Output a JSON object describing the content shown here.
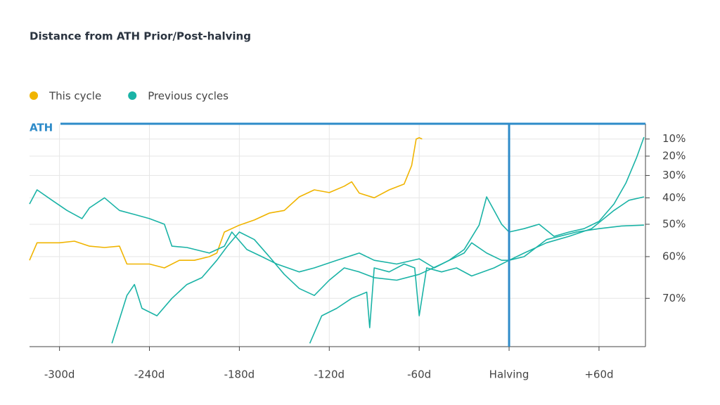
{
  "chart_data": {
    "type": "line",
    "title": "Distance from ATH Prior/Post-halving",
    "yscale": "log-price",
    "grid": true,
    "legend": "top-left",
    "xlim": [
      -320,
      91
    ],
    "xticks": [
      {
        "value": -300,
        "label": "-300d"
      },
      {
        "value": -240,
        "label": "-240d"
      },
      {
        "value": -180,
        "label": "-180d"
      },
      {
        "value": -120,
        "label": "-120d"
      },
      {
        "value": -60,
        "label": "-60d"
      },
      {
        "value": 0,
        "label": "Halving"
      },
      {
        "value": 60,
        "label": "+60d"
      }
    ],
    "ylim": [
      0,
      78.5
    ],
    "yticks": [
      {
        "value": 10,
        "label": "10%"
      },
      {
        "value": 20,
        "label": "20%"
      },
      {
        "value": 30,
        "label": "30%"
      },
      {
        "value": 40,
        "label": "40%"
      },
      {
        "value": 50,
        "label": "50%"
      },
      {
        "value": 60,
        "label": "60%"
      },
      {
        "value": 70,
        "label": "70%"
      }
    ],
    "annotations": [
      {
        "label": "ATH",
        "y": 0,
        "color": "#2e8bc9"
      }
    ],
    "vlines": [
      {
        "x": 0,
        "color": "#2e8bc9"
      }
    ],
    "series": [
      {
        "name": "This cycle",
        "color": "#f0b400",
        "lines": [
          {
            "x": [
              -320,
              -315,
              -300,
              -290,
              -280,
              -270,
              -260,
              -255,
              -240,
              -230,
              -220,
              -210,
              -200,
              -195,
              -190,
              -180,
              -170,
              -160,
              -150,
              -140,
              -130,
              -120,
              -110,
              -105,
              -100,
              -90,
              -80,
              -70,
              -65,
              -62,
              -60,
              -58
            ],
            "values": [
              61,
              56,
              56,
              55.5,
              57,
              57.4,
              57,
              62,
              62,
              63,
              61,
              61,
              60,
              59,
              52.6,
              50.3,
              48.5,
              46,
              45,
              39.6,
              36.6,
              37.8,
              35,
              33,
              38,
              40,
              36.6,
              34,
              25,
              10,
              9.2,
              10
            ]
          }
        ]
      },
      {
        "name": "Previous cycles",
        "color": "#1ab3a6",
        "lines": [
          {
            "x": [
              -320,
              -315,
              -305,
              -295,
              -285,
              -280,
              -270,
              -260,
              -250,
              -240,
              -230,
              -225,
              -215,
              -200,
              -190,
              -185,
              -175,
              -165,
              -155,
              -140,
              -130,
              -115,
              -100,
              -90,
              -75,
              -60,
              -50,
              -40,
              -30,
              -20,
              -15,
              -10,
              -5,
              0,
              10,
              20,
              30,
              40,
              50,
              60,
              70,
              78,
              85,
              90
            ],
            "values": [
              42.5,
              36.6,
              41,
              45,
              48,
              44,
              40,
              45,
              46.5,
              48,
              50,
              57,
              57.4,
              59,
              57,
              52.6,
              58,
              60,
              62,
              64,
              63,
              61,
              59,
              61,
              62,
              60.6,
              63,
              61,
              58,
              50.3,
              39.6,
              45,
              50,
              52.6,
              51.5,
              50,
              54,
              52.6,
              51.5,
              49,
              42.5,
              33.5,
              21,
              8.8
            ]
          },
          {
            "x": [
              -265,
              -255,
              -250,
              -245,
              -235,
              -225,
              -215,
              -205,
              -195,
              -188,
              -180,
              -170,
              -160,
              -150,
              -140,
              -130,
              -120,
              -110,
              -100,
              -90,
              -75,
              -60,
              -45,
              -30,
              -25,
              -15,
              -5,
              0,
              10,
              25,
              40,
              55,
              70,
              80,
              90
            ],
            "values": [
              78,
              69.4,
              67,
              72,
              73.4,
              70,
              67,
              65.4,
              61,
              57,
              52.6,
              55,
              60,
              64.6,
              67.9,
              69.4,
              66,
              63,
              64,
              65.4,
              66,
              64.6,
              62,
              59,
              56,
              59,
              61,
              61,
              59,
              56,
              54,
              51.5,
              45,
              41,
              39.6
            ]
          },
          {
            "x": [
              -133,
              -125,
              -115,
              -105,
              -95,
              -93,
              -90,
              -80,
              -70,
              -63,
              -60,
              -55,
              -45,
              -35,
              -25,
              -10,
              0,
              10,
              25,
              45,
              60,
              75,
              90
            ],
            "values": [
              78,
              73.4,
              72,
              70,
              68.7,
              75.5,
              63,
              64,
              62,
              63,
              73.4,
              63,
              64,
              63,
              65,
              63,
              61,
              60,
              55,
              52.6,
              51.5,
              50.6,
              50.3
            ]
          }
        ]
      }
    ]
  }
}
